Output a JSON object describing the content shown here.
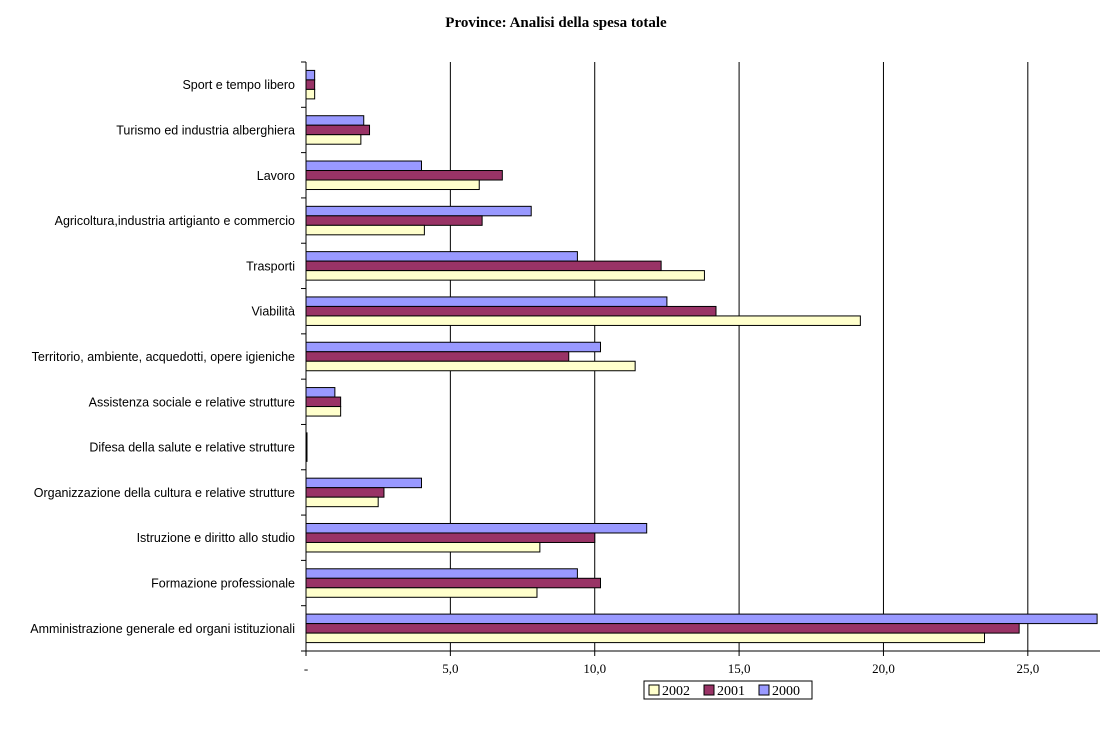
{
  "chart_data": {
    "type": "bar",
    "orientation": "horizontal",
    "title": "Province: Analisi della spesa totale",
    "categories": [
      "Sport e tempo libero",
      "Turismo ed industria alberghiera",
      "Lavoro",
      "Agricoltura,industria artigianto e commercio",
      "Trasporti",
      "Viabilità",
      "Territorio, ambiente, acquedotti, opere igieniche",
      "Assistenza sociale e relative strutture",
      "Difesa della salute e relative strutture",
      "Organizzazione della cultura e relative strutture",
      "Istruzione e diritto allo studio",
      "Formazione professionale",
      "Amministrazione generale ed organi istituzionali"
    ],
    "series": [
      {
        "name": "2000",
        "color": "#9999FF",
        "values": [
          0.3,
          2.0,
          4.0,
          7.8,
          9.4,
          12.5,
          10.2,
          1.0,
          0.02,
          4.0,
          11.8,
          9.4,
          27.4
        ]
      },
      {
        "name": "2001",
        "color": "#993366",
        "values": [
          0.3,
          2.2,
          6.8,
          6.1,
          12.3,
          14.2,
          9.1,
          1.2,
          0.02,
          2.7,
          10.0,
          10.2,
          24.7
        ]
      },
      {
        "name": "2002",
        "color": "#FFFFCC",
        "values": [
          0.3,
          1.9,
          6.0,
          4.1,
          13.8,
          19.2,
          11.4,
          1.2,
          0.02,
          2.5,
          8.1,
          8.0,
          23.5
        ]
      }
    ],
    "legend_order": [
      "2002",
      "2001",
      "2000"
    ],
    "xlim": [
      0,
      27.5
    ],
    "xticks": [
      0,
      5,
      10,
      15,
      20,
      25
    ],
    "xtick_labels": [
      "-",
      "5,0",
      "10,0",
      "15,0",
      "20,0",
      "25,0"
    ],
    "grid": "vertical",
    "legend_position": "bottom-right"
  }
}
